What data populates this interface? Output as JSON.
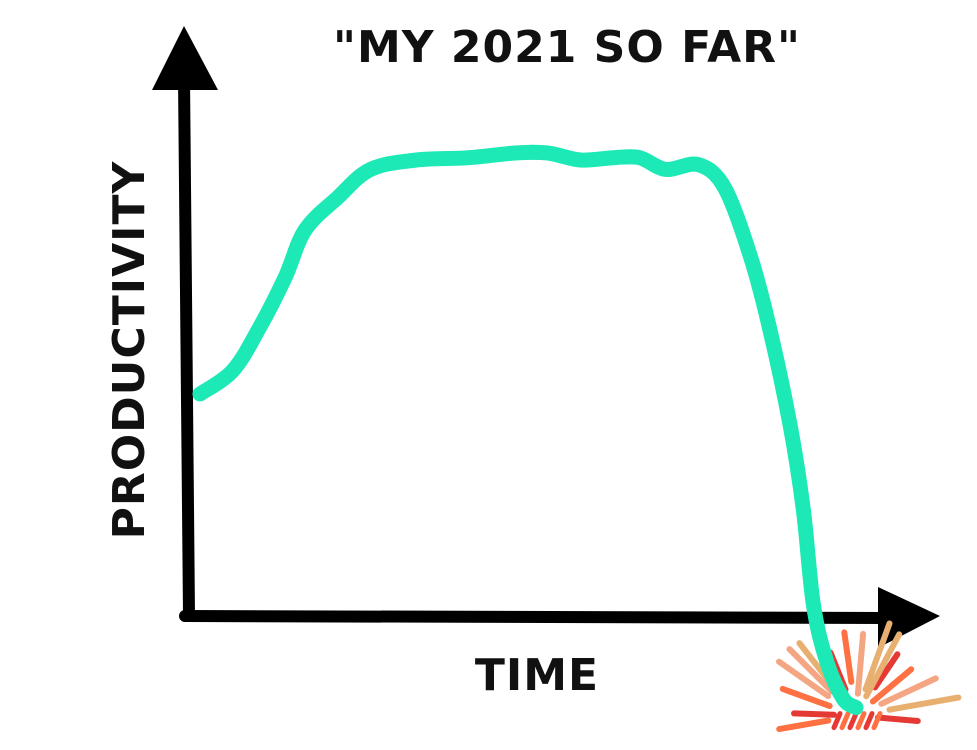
{
  "chart_data": {
    "type": "line",
    "title": "\"MY 2021 SO FAR\"",
    "xlabel": "TIME",
    "ylabel": "PRODUCTIVITY",
    "x": [
      0,
      0.05,
      0.09,
      0.13,
      0.16,
      0.21,
      0.26,
      0.33,
      0.41,
      0.48,
      0.53,
      0.58,
      0.63,
      0.67,
      0.71,
      0.76,
      0.8,
      0.84,
      0.87,
      0.9,
      0.92,
      0.935,
      0.955,
      0.98,
      1.0
    ],
    "series": [
      {
        "values": [
          0.47,
          0.52,
          0.61,
          0.72,
          0.82,
          0.89,
          0.95,
          0.97,
          0.975,
          0.985,
          0.985,
          0.97,
          0.975,
          0.975,
          0.95,
          0.96,
          0.91,
          0.76,
          0.6,
          0.4,
          0.22,
          0.02,
          -0.1,
          -0.18,
          -0.2
        ]
      }
    ],
    "grid": false,
    "legend": "none",
    "colors": {
      "line": "#1DE9B6",
      "axis": "#000000",
      "burst_dark": "#E53935",
      "burst_orange": "#FF7043",
      "burst_light": "#F4A582",
      "burst_tan": "#E8B070"
    }
  }
}
